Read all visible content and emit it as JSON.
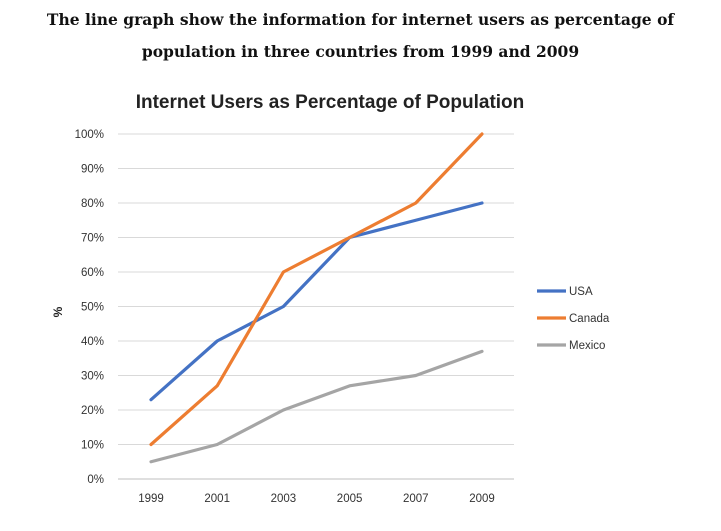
{
  "page": {
    "heading_line_1": "The line graph show the information for internet users as percentage of",
    "heading_line_2": "population in three countries from 1999 and 2009"
  },
  "chart_data": {
    "type": "line",
    "title": "Internet Users as Percentage of Population",
    "xlabel": "",
    "ylabel": "%",
    "categories": [
      "1999",
      "2001",
      "2003",
      "2005",
      "2007",
      "2009"
    ],
    "ylim": [
      0,
      100
    ],
    "yticks": [
      "0%",
      "10%",
      "20%",
      "30%",
      "40%",
      "50%",
      "60%",
      "70%",
      "80%",
      "90%",
      "100%"
    ],
    "grid": true,
    "legend_position": "right",
    "series": [
      {
        "name": "USA",
        "color": "#4472C4",
        "values": [
          23,
          40,
          50,
          70,
          75,
          80
        ]
      },
      {
        "name": "Canada",
        "color": "#ED7D31",
        "values": [
          10,
          27,
          60,
          70,
          80,
          100
        ]
      },
      {
        "name": "Mexico",
        "color": "#A5A5A5",
        "values": [
          5,
          10,
          20,
          27,
          30,
          37
        ]
      }
    ]
  }
}
